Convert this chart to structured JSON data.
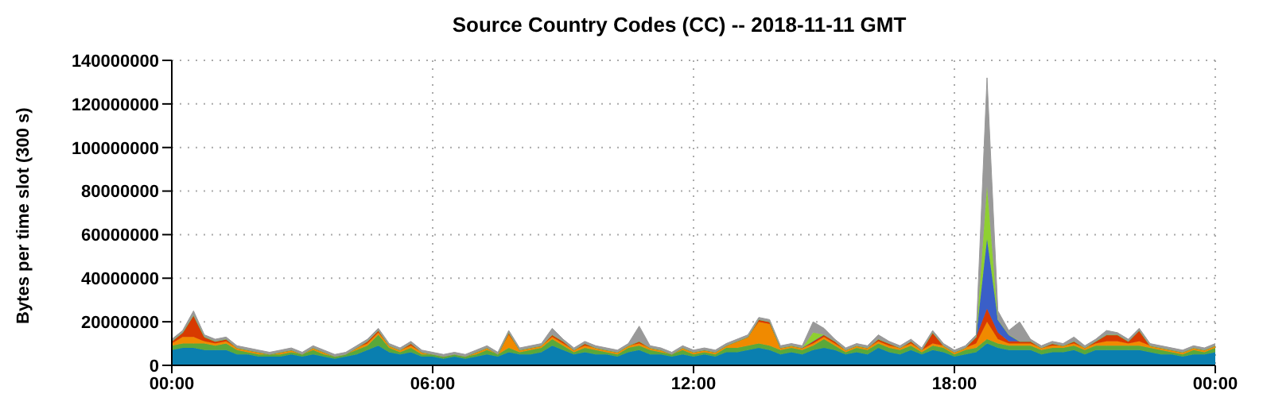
{
  "chart_data": {
    "type": "area",
    "title": "Source Country Codes (CC) -- 2018-11-11 GMT",
    "ylabel": "Bytes per time slot (300 s)",
    "stacked": true,
    "grid": true,
    "x": [
      0,
      0.25,
      0.5,
      0.75,
      1,
      1.25,
      1.5,
      1.75,
      2,
      2.25,
      2.5,
      2.75,
      3,
      3.25,
      3.5,
      3.75,
      4,
      4.25,
      4.5,
      4.75,
      5,
      5.25,
      5.5,
      5.75,
      6,
      6.25,
      6.5,
      6.75,
      7,
      7.25,
      7.5,
      7.75,
      8,
      8.25,
      8.5,
      8.75,
      9,
      9.25,
      9.5,
      9.75,
      10,
      10.25,
      10.5,
      10.75,
      11,
      11.25,
      11.5,
      11.75,
      12,
      12.25,
      12.5,
      12.75,
      13,
      13.25,
      13.5,
      13.75,
      14,
      14.25,
      14.5,
      14.75,
      15,
      15.25,
      15.5,
      15.75,
      16,
      16.25,
      16.5,
      16.75,
      17,
      17.25,
      17.5,
      17.75,
      18,
      18.25,
      18.5,
      18.75,
      19,
      19.25,
      19.5,
      19.75,
      20,
      20.25,
      20.5,
      20.75,
      21,
      21.25,
      21.5,
      21.75,
      22,
      22.25,
      22.5,
      22.75,
      23,
      23.25,
      23.5,
      23.75,
      24
    ],
    "xlim": [
      0,
      24
    ],
    "xticks": [
      {
        "value": 0,
        "label": "00:00"
      },
      {
        "value": 6,
        "label": "06:00"
      },
      {
        "value": 12,
        "label": "12:00"
      },
      {
        "value": 18,
        "label": "18:00"
      },
      {
        "value": 24,
        "label": "00:00"
      }
    ],
    "ylim": [
      0,
      140000000
    ],
    "yticks": [
      0,
      20000000,
      40000000,
      60000000,
      80000000,
      100000000,
      120000000,
      140000000
    ],
    "series": [
      {
        "color": "#0a7fb0",
        "values": [
          7000000,
          8000000,
          8000000,
          7000000,
          7000000,
          7000000,
          5000000,
          5000000,
          4000000,
          4000000,
          4000000,
          5000000,
          4000000,
          5000000,
          4000000,
          3000000,
          4000000,
          5000000,
          7000000,
          9000000,
          6000000,
          5000000,
          6000000,
          4000000,
          4000000,
          3000000,
          4000000,
          3000000,
          4000000,
          5000000,
          4000000,
          6000000,
          5000000,
          5000000,
          6000000,
          9000000,
          7000000,
          5000000,
          6000000,
          5000000,
          5000000,
          4000000,
          6000000,
          7000000,
          5000000,
          5000000,
          4000000,
          5000000,
          4000000,
          5000000,
          4000000,
          6000000,
          6000000,
          7000000,
          8000000,
          7000000,
          5000000,
          6000000,
          5000000,
          7000000,
          8000000,
          7000000,
          5000000,
          6000000,
          5000000,
          8000000,
          6000000,
          5000000,
          7000000,
          5000000,
          7000000,
          6000000,
          4000000,
          5000000,
          6000000,
          10000000,
          8000000,
          7000000,
          7000000,
          7000000,
          5000000,
          6000000,
          6000000,
          7000000,
          5000000,
          7000000,
          7000000,
          7000000,
          7000000,
          7000000,
          6000000,
          5000000,
          5000000,
          4000000,
          5000000,
          5000000,
          6000000
        ]
      },
      {
        "color": "#5aa83a",
        "values": [
          2000000,
          2000000,
          2000000,
          3000000,
          2000000,
          3000000,
          2000000,
          1000000,
          1000000,
          1000000,
          1000000,
          1000000,
          1000000,
          2000000,
          1000000,
          1000000,
          1000000,
          2000000,
          2000000,
          5000000,
          2000000,
          1000000,
          2000000,
          1000000,
          1000000,
          1000000,
          1000000,
          1000000,
          1000000,
          2000000,
          1000000,
          2000000,
          1000000,
          2000000,
          2000000,
          3000000,
          2000000,
          1000000,
          2000000,
          2000000,
          1000000,
          1000000,
          2000000,
          2000000,
          2000000,
          1000000,
          1000000,
          2000000,
          1000000,
          1000000,
          1000000,
          2000000,
          2000000,
          2000000,
          2000000,
          2000000,
          2000000,
          2000000,
          2000000,
          2000000,
          4000000,
          2000000,
          1000000,
          2000000,
          2000000,
          2000000,
          2000000,
          2000000,
          2000000,
          1000000,
          2000000,
          2000000,
          1000000,
          2000000,
          2000000,
          2000000,
          2000000,
          2000000,
          2000000,
          2000000,
          2000000,
          2000000,
          2000000,
          2000000,
          2000000,
          2000000,
          2000000,
          2000000,
          2000000,
          2000000,
          2000000,
          2000000,
          1000000,
          1000000,
          2000000,
          1000000,
          2000000
        ]
      },
      {
        "color": "#f08a00",
        "values": [
          1000000,
          3000000,
          3000000,
          1000000,
          1000000,
          1000000,
          1000000,
          1000000,
          1000000,
          0,
          1000000,
          1000000,
          0,
          1000000,
          1000000,
          0,
          0,
          1000000,
          1000000,
          1000000,
          1000000,
          1000000,
          1000000,
          1000000,
          0,
          0,
          0,
          0,
          1000000,
          1000000,
          0,
          6000000,
          1000000,
          1000000,
          1000000,
          1000000,
          1000000,
          1000000,
          1000000,
          1000000,
          1000000,
          1000000,
          1000000,
          1000000,
          1000000,
          1000000,
          0,
          1000000,
          1000000,
          1000000,
          1000000,
          1000000,
          3000000,
          4000000,
          10000000,
          10000000,
          1000000,
          1000000,
          1000000,
          1000000,
          1000000,
          1000000,
          1000000,
          1000000,
          1000000,
          1000000,
          1000000,
          1000000,
          1000000,
          1000000,
          1000000,
          1000000,
          1000000,
          1000000,
          2000000,
          8000000,
          2000000,
          1000000,
          1000000,
          1000000,
          1000000,
          1000000,
          1000000,
          1000000,
          1000000,
          1000000,
          2000000,
          2000000,
          1000000,
          2000000,
          1000000,
          1000000,
          1000000,
          1000000,
          1000000,
          1000000,
          1000000
        ]
      },
      {
        "color": "#d83a00",
        "values": [
          1000000,
          2000000,
          10000000,
          2000000,
          1000000,
          1000000,
          0,
          0,
          0,
          0,
          0,
          0,
          0,
          0,
          0,
          0,
          0,
          0,
          1000000,
          1000000,
          0,
          0,
          1000000,
          0,
          0,
          0,
          0,
          0,
          0,
          0,
          0,
          1000000,
          0,
          0,
          0,
          1000000,
          1000000,
          0,
          1000000,
          0,
          0,
          0,
          0,
          1000000,
          0,
          0,
          0,
          0,
          0,
          0,
          0,
          0,
          0,
          0,
          1000000,
          1000000,
          0,
          0,
          0,
          1000000,
          1000000,
          1000000,
          0,
          0,
          0,
          1000000,
          1000000,
          0,
          1000000,
          0,
          5000000,
          0,
          0,
          0,
          3000000,
          6000000,
          3000000,
          1000000,
          1000000,
          1000000,
          0,
          1000000,
          0,
          1000000,
          0,
          1000000,
          3000000,
          3000000,
          1000000,
          5000000,
          0,
          0,
          0,
          0,
          0,
          0,
          0
        ]
      },
      {
        "color": "#3a5fc8",
        "values": [
          0,
          0,
          0,
          0,
          0,
          0,
          0,
          0,
          0,
          0,
          0,
          0,
          0,
          0,
          0,
          0,
          0,
          0,
          0,
          0,
          0,
          0,
          0,
          0,
          0,
          0,
          0,
          0,
          0,
          0,
          0,
          0,
          0,
          0,
          0,
          0,
          0,
          0,
          0,
          0,
          0,
          0,
          0,
          0,
          0,
          0,
          0,
          0,
          0,
          0,
          0,
          0,
          0,
          0,
          0,
          0,
          0,
          0,
          0,
          0,
          0,
          0,
          0,
          0,
          0,
          0,
          0,
          0,
          0,
          0,
          0,
          0,
          0,
          0,
          0,
          32000000,
          6000000,
          3000000,
          0,
          0,
          0,
          0,
          0,
          0,
          0,
          0,
          0,
          0,
          0,
          0,
          0,
          0,
          0,
          0,
          0,
          0,
          0
        ]
      },
      {
        "color": "#8fd030",
        "values": [
          0,
          0,
          0,
          0,
          0,
          0,
          0,
          0,
          0,
          0,
          0,
          0,
          0,
          0,
          0,
          0,
          0,
          0,
          0,
          0,
          0,
          0,
          0,
          0,
          0,
          0,
          0,
          0,
          0,
          0,
          0,
          0,
          0,
          0,
          0,
          0,
          0,
          0,
          0,
          0,
          0,
          0,
          0,
          0,
          0,
          0,
          0,
          0,
          0,
          0,
          0,
          0,
          0,
          0,
          0,
          0,
          0,
          0,
          0,
          4000000,
          0,
          0,
          0,
          0,
          0,
          0,
          0,
          0,
          0,
          0,
          0,
          0,
          0,
          0,
          0,
          24000000,
          0,
          0,
          0,
          0,
          0,
          0,
          0,
          0,
          0,
          0,
          0,
          0,
          0,
          0,
          0,
          0,
          0,
          0,
          0,
          0,
          0
        ]
      },
      {
        "color": "#999999",
        "values": [
          1000000,
          1000000,
          2000000,
          1000000,
          1000000,
          1000000,
          1000000,
          1000000,
          1000000,
          1000000,
          1000000,
          1000000,
          1000000,
          1000000,
          1000000,
          1000000,
          1000000,
          1000000,
          1000000,
          1000000,
          1000000,
          1000000,
          1000000,
          1000000,
          1000000,
          1000000,
          1000000,
          1000000,
          1000000,
          1000000,
          1000000,
          1000000,
          1000000,
          1000000,
          1000000,
          3000000,
          1000000,
          1000000,
          1000000,
          1000000,
          1000000,
          1000000,
          1000000,
          7000000,
          1000000,
          1000000,
          1000000,
          1000000,
          1000000,
          1000000,
          1000000,
          1000000,
          1000000,
          1000000,
          1000000,
          1000000,
          1000000,
          1000000,
          1000000,
          5000000,
          3000000,
          1000000,
          1000000,
          1000000,
          1000000,
          2000000,
          1000000,
          1000000,
          1000000,
          1000000,
          1000000,
          1000000,
          1000000,
          1000000,
          1000000,
          50000000,
          4000000,
          2000000,
          9000000,
          1000000,
          1000000,
          1000000,
          1000000,
          2000000,
          1000000,
          1000000,
          2000000,
          1000000,
          1000000,
          1000000,
          1000000,
          1000000,
          1000000,
          1000000,
          1000000,
          1000000,
          1000000
        ]
      }
    ]
  }
}
